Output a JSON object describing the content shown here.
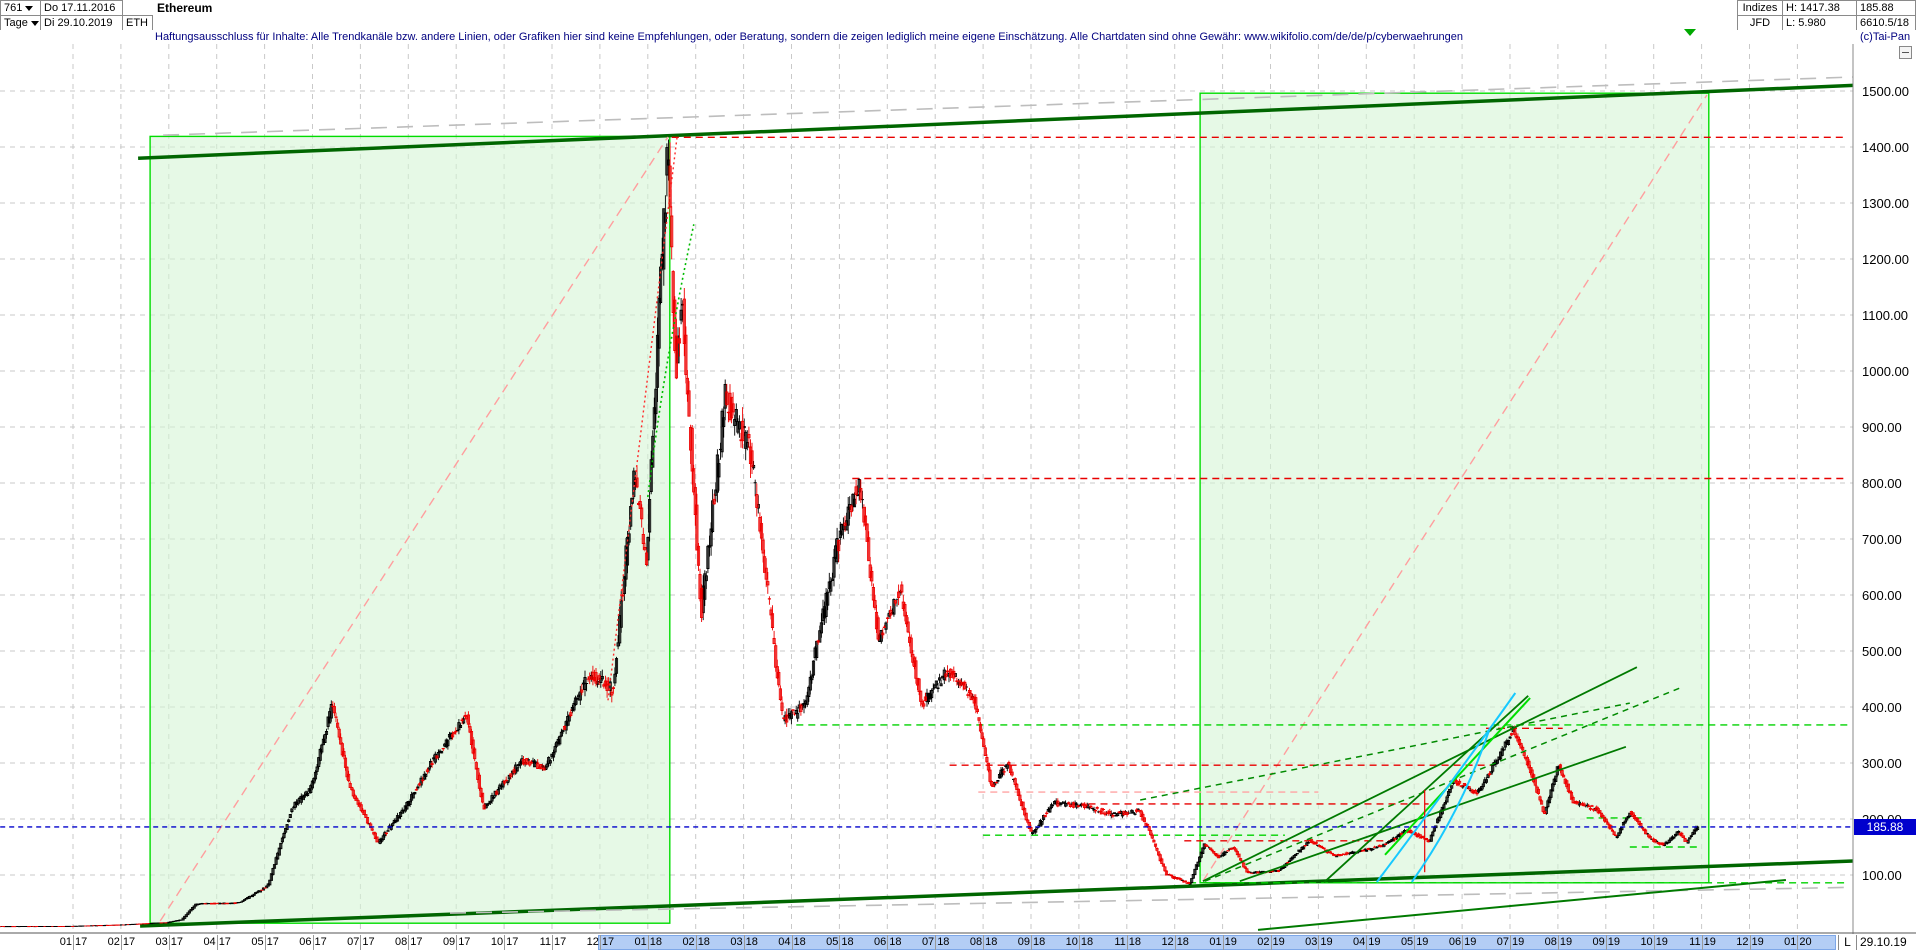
{
  "header": {
    "bars_count": "761",
    "period": "Tage",
    "date_from": "Do 17.11.2016",
    "date_to": "Di 29.10.2019",
    "symbol": "ETH",
    "title": "Ethereum",
    "right": {
      "group": "Indizes",
      "feed": "JFD",
      "high": "H: 1417.38",
      "low": "L: 5.980",
      "last": "185.88",
      "volume": "6610.5/18",
      "copyright": "(c)Tai-Pan"
    }
  },
  "disclaimer": "Haftungsausschluss für Inhalte: Alle Trendkanäle bzw. andere Linien, oder Grafiken hier sind keine Empfehlungen, oder Beratung, sondern die zeigen lediglich meine eigene Einschätzung. Alle Chartdaten sind ohne Gewähr:  www.wikifolio.com/de/de/p/cyberwaehrungen",
  "axis": {
    "x_labels": [
      "01.17",
      "02.17",
      "03.17",
      "04.17",
      "05.17",
      "06.17",
      "07.17",
      "08.17",
      "09.17",
      "10.17",
      "11.17",
      "12.17",
      "01.18",
      "02.18",
      "03.18",
      "04.18",
      "05.18",
      "06.18",
      "07.18",
      "08.18",
      "09.18",
      "10.18",
      "11.18",
      "12.18",
      "01.19",
      "02.19",
      "03.19",
      "04.19",
      "05.19",
      "06.19",
      "07.19",
      "08.19",
      "09.19",
      "10.19",
      "11.19",
      "12.19",
      "01.20"
    ],
    "y_tick_labels": [
      "1500.00",
      "1400.00",
      "1300.00",
      "1200.00",
      "1100.00",
      "1000.00",
      "900.00",
      "800.00",
      "700.00",
      "600.00",
      "500.00",
      "400.00",
      "300.00",
      "200.00",
      "100.00"
    ],
    "highlight_from_m": 10.95,
    "highlight_to_m": 36.8,
    "l_label": "L",
    "last_date": "29.10.19"
  },
  "chart_data": {
    "type": "candlestick",
    "title": "Ethereum (ETH) daily, 17.11.2016 - 29.10.2019",
    "ylim": [
      0,
      1580
    ],
    "y_ticks": [
      100,
      200,
      300,
      400,
      500,
      600,
      700,
      800,
      900,
      1000,
      1100,
      1200,
      1300,
      1400,
      1500
    ],
    "last_price": 185.88,
    "period_high": 1417.38,
    "period_low": 5.98,
    "price_keypoints_month_price": [
      [
        -1.55,
        7.8
      ],
      [
        0,
        8.2
      ],
      [
        1,
        10.6
      ],
      [
        2,
        15
      ],
      [
        2.3,
        20
      ],
      [
        2.6,
        48
      ],
      [
        3.5,
        50
      ],
      [
        4.1,
        80
      ],
      [
        4.6,
        220
      ],
      [
        5.0,
        255
      ],
      [
        5.45,
        405
      ],
      [
        5.8,
        260
      ],
      [
        6.4,
        157
      ],
      [
        7.0,
        225
      ],
      [
        7.5,
        298
      ],
      [
        8.25,
        388
      ],
      [
        8.6,
        218
      ],
      [
        9.4,
        305
      ],
      [
        9.9,
        292
      ],
      [
        10.8,
        460
      ],
      [
        11.3,
        430
      ],
      [
        11.75,
        820
      ],
      [
        12.0,
        660
      ],
      [
        12.45,
        1400
      ],
      [
        12.62,
        1000
      ],
      [
        12.75,
        1120
      ],
      [
        13.15,
        570
      ],
      [
        13.65,
        955
      ],
      [
        14.2,
        850
      ],
      [
        14.85,
        375
      ],
      [
        15.3,
        400
      ],
      [
        16.0,
        690
      ],
      [
        16.45,
        805
      ],
      [
        16.85,
        520
      ],
      [
        17.3,
        610
      ],
      [
        17.75,
        405
      ],
      [
        18.3,
        465
      ],
      [
        18.85,
        415
      ],
      [
        19.2,
        258
      ],
      [
        19.55,
        298
      ],
      [
        20.05,
        172
      ],
      [
        20.5,
        228
      ],
      [
        21.1,
        224
      ],
      [
        21.75,
        208
      ],
      [
        22.3,
        214
      ],
      [
        22.5,
        178
      ],
      [
        22.85,
        102
      ],
      [
        23.35,
        84
      ],
      [
        23.65,
        156
      ],
      [
        23.95,
        132
      ],
      [
        24.25,
        150
      ],
      [
        24.55,
        104
      ],
      [
        25.2,
        107
      ],
      [
        25.85,
        162
      ],
      [
        26.35,
        134
      ],
      [
        26.85,
        141
      ],
      [
        27.4,
        153
      ],
      [
        27.85,
        180
      ],
      [
        28.35,
        161
      ],
      [
        28.85,
        268
      ],
      [
        29.35,
        247
      ],
      [
        29.85,
        318
      ],
      [
        30.1,
        360
      ],
      [
        30.45,
        288
      ],
      [
        30.75,
        210
      ],
      [
        31.05,
        298
      ],
      [
        31.35,
        230
      ],
      [
        31.85,
        217
      ],
      [
        32.25,
        168
      ],
      [
        32.55,
        213
      ],
      [
        32.95,
        165
      ],
      [
        33.25,
        153
      ],
      [
        33.55,
        178
      ],
      [
        33.72,
        158
      ],
      [
        33.93,
        185.88
      ]
    ],
    "candle_gen": {
      "start_m": -1.55,
      "end_m": 33.93,
      "step_m": 0.0329,
      "seed": 7
    },
    "boxes": [
      {
        "m1": 1.61,
        "p1": 1419,
        "m2": 12.46,
        "p2": 14
      },
      {
        "m1": 23.53,
        "p1": 1496,
        "m2": 34.15,
        "p2": 86
      }
    ],
    "levels": [
      {
        "p": 1417.38,
        "m1": 12.5,
        "m2": 37.05,
        "c": "red"
      },
      {
        "p": 808,
        "m1": 16.27,
        "m2": 37.05,
        "c": "red"
      },
      {
        "p": 362,
        "m1": 29.5,
        "m2": 31.1,
        "c": "red"
      },
      {
        "p": 296,
        "m1": 18.3,
        "m2": 29.65,
        "c": "red"
      },
      {
        "p": 227,
        "m1": 21.2,
        "m2": 28.3,
        "c": "red"
      },
      {
        "p": 161,
        "m1": 23.2,
        "m2": 27.7,
        "c": "red"
      },
      {
        "p": 248,
        "m1": 18.9,
        "m2": 26.0,
        "c": "pink"
      },
      {
        "p": 368,
        "m1": 15.1,
        "m2": 37.05,
        "c": "green"
      },
      {
        "p": 86,
        "m1": 23.3,
        "m2": 37.05,
        "c": "green"
      },
      {
        "p": 171,
        "m1": 19.0,
        "m2": 25.3,
        "c": "green"
      },
      {
        "p": 202,
        "m1": 31.6,
        "m2": 32.8,
        "c": "green"
      },
      {
        "p": 150,
        "m1": 32.5,
        "m2": 33.95,
        "c": "green"
      },
      {
        "p": 185.88,
        "m1": -1.52,
        "m2": 37.16,
        "c": "blue"
      }
    ],
    "trendlines_under": [
      {
        "m1": 1.36,
        "p1": 1380,
        "m2": 37.16,
        "p2": 1510,
        "c": "dark",
        "w": 3.5
      },
      {
        "m1": 1.4,
        "p1": 8.9,
        "m2": 37.16,
        "p2": 125,
        "c": "dark",
        "w": 3.5
      },
      {
        "m1": 1.88,
        "p1": 1421,
        "m2": 37.16,
        "p2": 1525,
        "c": "gray",
        "w": 1.6
      },
      {
        "m1": 7.87,
        "p1": 32,
        "m2": 37.16,
        "p2": 78,
        "c": "gray",
        "w": 1.6
      },
      {
        "m1": 1.82,
        "p1": 17.9,
        "m2": 12.42,
        "p2": 1417.9,
        "c": "pinkd",
        "w": 1.4
      },
      {
        "m1": 23.59,
        "p1": 89.3,
        "m2": 34.11,
        "p2": 1492.9,
        "c": "pinkd",
        "w": 1.4
      }
    ],
    "trendlines_over": [
      {
        "m1": 11.17,
        "p1": 412,
        "m2": 12.61,
        "p2": 1417,
        "c": "reddot",
        "w": 1.4
      },
      {
        "m1": 23.59,
        "p1": 89,
        "m2": 32.65,
        "p2": 471,
        "c": "dgreen",
        "w": 1.8
      },
      {
        "m1": 24.36,
        "p1": 89,
        "m2": 32.42,
        "p2": 329,
        "c": "dgreen",
        "w": 1.8
      },
      {
        "m1": 26.12,
        "p1": 87,
        "m2": 30.38,
        "p2": 420,
        "c": "dgreen",
        "w": 1.8
      },
      {
        "m1": 24.74,
        "p1": 2,
        "m2": 35.76,
        "p2": 91,
        "c": "dgreen",
        "w": 2.0
      },
      {
        "m1": 23.63,
        "p1": 89,
        "m2": 33.61,
        "p2": 436,
        "c": "dgreend",
        "w": 1.5
      },
      {
        "m1": 22.28,
        "p1": 234,
        "m2": 32.5,
        "p2": 407,
        "c": "dgreend",
        "w": 1.5
      },
      {
        "m1": 27.39,
        "p1": 136,
        "m2": 30.42,
        "p2": 416,
        "c": "bright",
        "w": 2.0
      },
      {
        "m1": 28.22,
        "p1": 252,
        "m2": 28.22,
        "p2": 105,
        "c": "red2",
        "w": 1.2
      }
    ],
    "curves": [
      {
        "m1": 27.22,
        "p1": 87.5,
        "mq": 28.9,
        "pq": 278.6,
        "m2": 30.11,
        "p2": 425,
        "c": "cyan",
        "w": 2
      },
      {
        "m1": 27.95,
        "p1": 87.5,
        "mq": 28.99,
        "pq": 212.5,
        "m2": 29.58,
        "p2": 362.5,
        "c": "cyan",
        "w": 2
      },
      {
        "m1": 12.0,
        "p1": 775,
        "mq": 12.35,
        "pq": 1020,
        "m2": 12.96,
        "p2": 1262,
        "c": "greendot",
        "w": 1.6
      }
    ]
  }
}
